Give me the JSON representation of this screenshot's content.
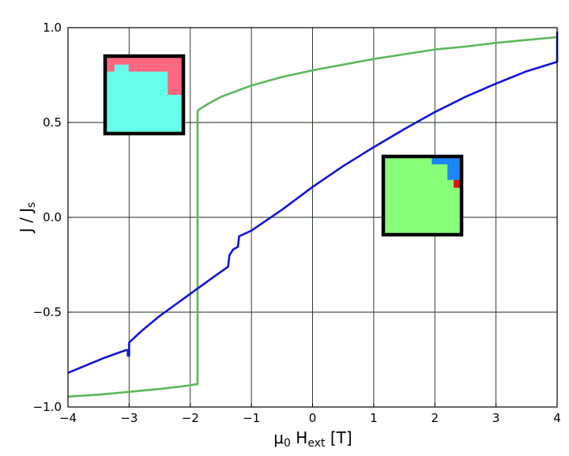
{
  "chart_data": {
    "type": "line",
    "xlabel": {
      "base": "μ",
      "sub1": "0",
      "mid": " H",
      "sub2": "ext",
      "unit": " [T]"
    },
    "ylabel": {
      "base": "J / J",
      "sub": "s"
    },
    "xlim": [
      -4,
      4
    ],
    "ylim": [
      -1.0,
      1.0
    ],
    "xticks": [
      -4,
      -3,
      -2,
      -1,
      0,
      1,
      2,
      3,
      4
    ],
    "xtick_labels": [
      "−4",
      "−3",
      "−2",
      "−1",
      "0",
      "1",
      "2",
      "3",
      "4"
    ],
    "yticks": [
      -1.0,
      -0.5,
      0.0,
      0.5,
      1.0
    ],
    "ytick_labels": [
      "−1.0",
      "−0.5",
      "0.0",
      "0.5",
      "1.0"
    ],
    "grid": true,
    "series": [
      {
        "color": "#5cb85c",
        "points": [
          [
            -4,
            -0.945
          ],
          [
            -3.5,
            -0.935
          ],
          [
            -3,
            -0.92
          ],
          [
            -2.5,
            -0.905
          ],
          [
            -2.1,
            -0.89
          ],
          [
            -1.9,
            -0.88
          ],
          [
            -1.9,
            -0.88
          ],
          [
            -1.88,
            -0.88
          ],
          [
            -1.88,
            0.56
          ],
          [
            -1.85,
            0.57
          ],
          [
            -1.7,
            0.6
          ],
          [
            -1.5,
            0.635
          ],
          [
            -1.0,
            0.695
          ],
          [
            -0.5,
            0.74
          ],
          [
            0,
            0.775
          ],
          [
            0.5,
            0.805
          ],
          [
            1.0,
            0.835
          ],
          [
            1.5,
            0.86
          ],
          [
            2.0,
            0.885
          ],
          [
            2.5,
            0.9
          ],
          [
            3.0,
            0.92
          ],
          [
            3.5,
            0.935
          ],
          [
            4.0,
            0.95
          ]
        ]
      },
      {
        "color": "#1414d4",
        "points": [
          [
            -4,
            -0.82
          ],
          [
            -3.7,
            -0.78
          ],
          [
            -3.4,
            -0.74
          ],
          [
            -3.05,
            -0.7
          ],
          [
            -3.02,
            -0.7
          ],
          [
            -3.02,
            -0.73
          ],
          [
            -3.0,
            -0.73
          ],
          [
            -3.0,
            -0.66
          ],
          [
            -2.8,
            -0.6
          ],
          [
            -2.5,
            -0.52
          ],
          [
            -2.2,
            -0.45
          ],
          [
            -1.9,
            -0.38
          ],
          [
            -1.6,
            -0.31
          ],
          [
            -1.38,
            -0.26
          ],
          [
            -1.36,
            -0.2
          ],
          [
            -1.3,
            -0.17
          ],
          [
            -1.22,
            -0.155
          ],
          [
            -1.2,
            -0.1
          ],
          [
            -1.0,
            -0.07
          ],
          [
            -0.5,
            0.04
          ],
          [
            0,
            0.16
          ],
          [
            0.5,
            0.27
          ],
          [
            1.0,
            0.37
          ],
          [
            1.5,
            0.465
          ],
          [
            2.0,
            0.555
          ],
          [
            2.5,
            0.635
          ],
          [
            3.0,
            0.705
          ],
          [
            3.5,
            0.77
          ],
          [
            4.0,
            0.82
          ],
          [
            4.0,
            0.98
          ]
        ]
      }
    ],
    "insets": [
      {
        "near": "upper-left",
        "background": "#66ffe8",
        "cells": [
          {
            "color": "#ff6680",
            "rect": [
              0,
              0,
              1,
              0.11
            ]
          },
          {
            "color": "#ff6680",
            "rect": [
              0,
              0.11,
              0.12,
              0.2
            ]
          },
          {
            "color": "#ff6680",
            "rect": [
              0.3,
              0.11,
              0.8,
              0.2
            ]
          },
          {
            "color": "#ff6680",
            "rect": [
              0.8,
              0.11,
              1,
              0.5
            ]
          }
        ]
      },
      {
        "near": "lower-right",
        "background": "#88ff7a",
        "cells": [
          {
            "color": "#1a86ff",
            "rect": [
              0.62,
              0,
              0.98,
              0.1
            ]
          },
          {
            "color": "#1a86ff",
            "rect": [
              0.82,
              0.1,
              0.98,
              0.3
            ]
          },
          {
            "color": "#e01010",
            "rect": [
              0.9,
              0.3,
              0.98,
              0.4
            ]
          }
        ]
      }
    ]
  }
}
